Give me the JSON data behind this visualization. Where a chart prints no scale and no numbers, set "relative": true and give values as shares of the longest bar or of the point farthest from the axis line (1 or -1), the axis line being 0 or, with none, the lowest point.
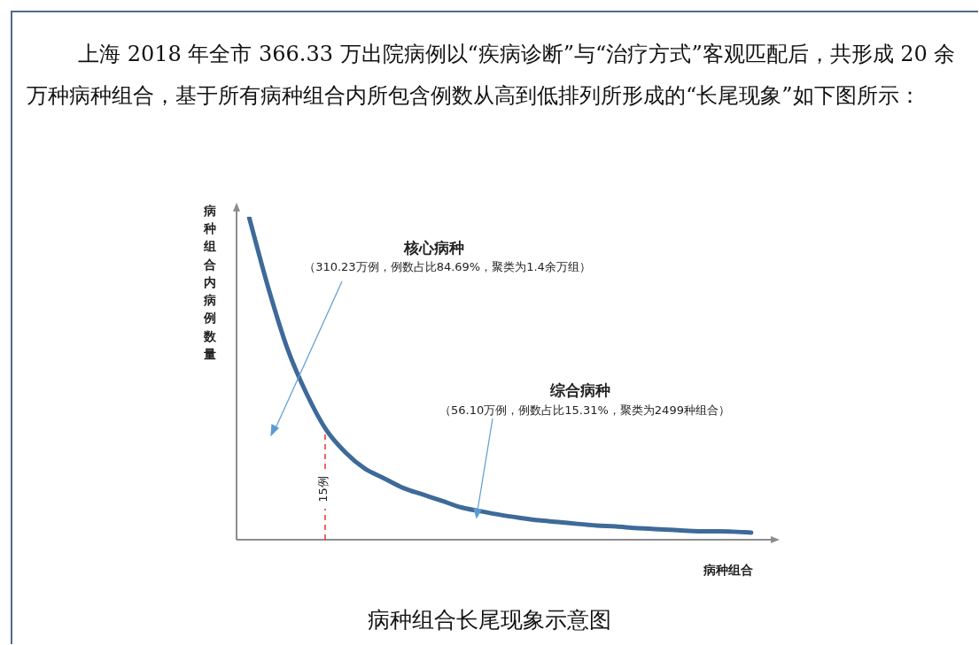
{
  "chart_data": {
    "type": "line",
    "subtitle": "上海 2018 年全市 366.33 万出院病例以“疾病诊断”与“治疗方式”客观匹配后，共形成 20 余万种病种组合，基于所有病种组合内所包含例数从高到低排列所形成的“长尾现象”如下图所示：",
    "title": "病种组合长尾现象示意图",
    "xlabel": "病种组合",
    "ylabel": "病种组合内病例数量",
    "relative": true,
    "marker": "none",
    "categories": [
      null,
      null,
      null,
      null,
      null,
      null,
      null,
      null,
      null,
      null,
      null,
      null,
      null,
      null,
      null,
      null,
      null,
      null,
      null,
      null,
      null,
      null,
      null,
      null,
      null,
      null,
      null
    ],
    "series": [
      {
        "color": "#3d6a99",
        "values": [
          1,
          0.78,
          0.59,
          0.45,
          0.34,
          0.27,
          0.22,
          0.19,
          0.16,
          0.14,
          0.12,
          0.1,
          0.088,
          0.077,
          0.068,
          0.06,
          0.055,
          0.049,
          0.044,
          0.041,
          0.036,
          0.033,
          0.03,
          0.027,
          0.026,
          0.025,
          0.022
        ]
      }
    ],
    "annotations": [
      "核心病种",
      "（310.23万例，例数占比84.69%，聚类为1.4余万组）",
      "综合病种",
      "（56.10万例，例数占比15.31%，聚类为2499种组合）",
      "15例"
    ]
  }
}
